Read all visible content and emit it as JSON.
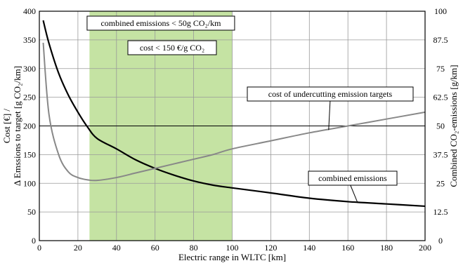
{
  "chart_data": {
    "type": "line",
    "x": [
      2,
      5,
      10,
      15,
      20,
      25,
      30,
      40,
      50,
      60,
      70,
      80,
      90,
      100,
      120,
      140,
      160,
      180,
      200
    ],
    "xlabel": "Electric range in WLTC [km]",
    "xlim": [
      0,
      200
    ],
    "xticks": [
      "0",
      "20",
      "40",
      "60",
      "80",
      "100",
      "120",
      "140",
      "160",
      "180",
      "200"
    ],
    "ylabel_left_line1": "Cost [€] /",
    "ylabel_left_line2": "Δ Emssions to target  [g CO₂/km]",
    "ylim_left": [
      0,
      400
    ],
    "yticks_left": [
      "0",
      "50",
      "100",
      "150",
      "200",
      "250",
      "300",
      "350",
      "400"
    ],
    "ylabel_right": "Combined CO₂-emissions [g/km]",
    "ylim_right": [
      0,
      100
    ],
    "yticks_right": [
      "0",
      "12.5",
      "25",
      "37.5",
      "50",
      "62.5",
      "75",
      "87.5",
      "100"
    ],
    "grid": true,
    "series": [
      {
        "axis": "right",
        "color": "#000000",
        "values": [
          96,
          86,
          73,
          63.5,
          56,
          49.5,
          44.5,
          40,
          35.2,
          31.5,
          28.5,
          26,
          24.2,
          23,
          20.8,
          18.5,
          17,
          16,
          15
        ]
      },
      {
        "axis": "left",
        "color": "#888888",
        "values": [
          345,
          220,
          150,
          120,
          110,
          106,
          105,
          110,
          118,
          126,
          134,
          142,
          150,
          160,
          174,
          188,
          200,
          212,
          224
        ]
      }
    ],
    "shaded_region": {
      "x_range": [
        26,
        100
      ],
      "color": "#c5e3a3"
    },
    "reference_line": {
      "axis": "left",
      "y": 200
    },
    "annotations": [
      {
        "key": "area_emissions",
        "text": "combined emissions < 50g CO₂/km"
      },
      {
        "key": "area_cost",
        "text": "cost < 150 €/g CO₂"
      },
      {
        "key": "cost_undercut",
        "text": "cost of undercutting emission targets",
        "x": 150,
        "y": 193,
        "axis": "left"
      },
      {
        "key": "combined",
        "text": "combined emissions",
        "x": 165,
        "y": 16.6,
        "axis": "right"
      }
    ]
  }
}
